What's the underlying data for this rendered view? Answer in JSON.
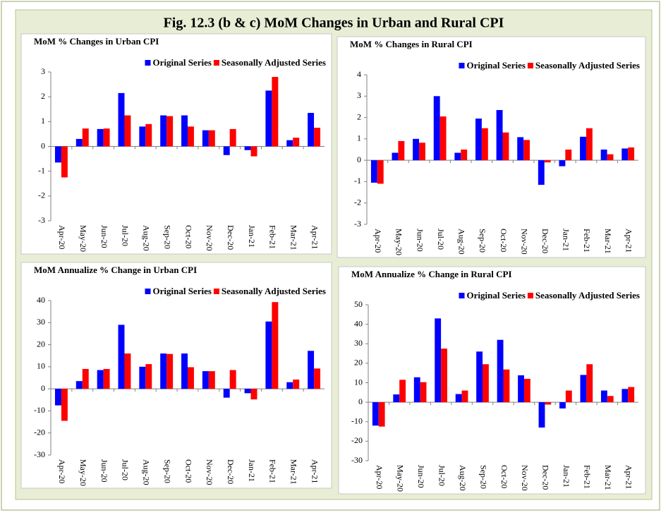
{
  "title": "Fig. 12.3 (b & c) MoM Changes in Urban and Rural CPI",
  "chart_data": [
    {
      "type": "bar",
      "title": "MoM % Changes in Urban CPI",
      "categories": [
        "Apr-20",
        "May-20",
        "Jun-20",
        "Jul-20",
        "Aug-20",
        "Sep-20",
        "Oct-20",
        "Nov-20",
        "Dec-20",
        "Jan-21",
        "Feb-21",
        "Mar-21",
        "Apr-21"
      ],
      "series": [
        {
          "name": "Original Series",
          "color": "#0000ff",
          "values": [
            -0.65,
            0.3,
            0.7,
            2.15,
            0.8,
            1.25,
            1.25,
            0.65,
            -0.35,
            -0.15,
            2.25,
            0.25,
            1.35
          ]
        },
        {
          "name": "Seasonally Adjusted Series",
          "color": "#ff0000",
          "values": [
            -1.25,
            0.72,
            0.72,
            1.25,
            0.9,
            1.22,
            0.8,
            0.65,
            0.7,
            -0.4,
            2.8,
            0.35,
            0.75
          ]
        }
      ],
      "ylim": [
        -3,
        3
      ],
      "yticks": [
        -3,
        -2,
        -1,
        0,
        1,
        2,
        3
      ]
    },
    {
      "type": "bar",
      "title": "MoM % Changes in Rural CPI",
      "categories": [
        "Apr-20",
        "May-20",
        "Jun-20",
        "Jul-20",
        "Aug-20",
        "Sep-20",
        "Oct-20",
        "Nov-20",
        "Dec-20",
        "Jan-21",
        "Feb-21",
        "Mar-21",
        "Apr-21"
      ],
      "series": [
        {
          "name": "Original Series",
          "color": "#0000ff",
          "values": [
            -1.05,
            0.35,
            1.0,
            3.0,
            0.35,
            1.95,
            2.35,
            1.08,
            -1.15,
            -0.28,
            1.1,
            0.5,
            0.55
          ]
        },
        {
          "name": "Seasonally Adjusted Series",
          "color": "#ff0000",
          "values": [
            -1.1,
            0.9,
            0.82,
            2.05,
            0.5,
            1.5,
            1.3,
            0.95,
            -0.1,
            0.5,
            1.5,
            0.28,
            0.6
          ]
        }
      ],
      "ylim": [
        -3,
        4
      ],
      "yticks": [
        -3,
        -2,
        -1,
        0,
        1,
        2,
        3,
        4
      ]
    },
    {
      "type": "bar",
      "title": "MoM Annualize % Change in Urban CPI",
      "categories": [
        "Apr-20",
        "May-20",
        "Jun-20",
        "Jul-20",
        "Aug-20",
        "Sep-20",
        "Oct-20",
        "Nov-20",
        "Dec-20",
        "Jan-21",
        "Feb-21",
        "Mar-21",
        "Apr-21"
      ],
      "series": [
        {
          "name": "Original Series",
          "color": "#0000ff",
          "values": [
            -7.5,
            3.5,
            8.5,
            29,
            10,
            16,
            16,
            8,
            -4,
            -2,
            30.5,
            3,
            17.2
          ]
        },
        {
          "name": "Seasonally Adjusted Series",
          "color": "#ff0000",
          "values": [
            -14.5,
            9,
            9,
            16,
            11.2,
            15.8,
            9.8,
            8,
            8.5,
            -4.8,
            39.3,
            4.2,
            9.2
          ]
        }
      ],
      "ylim": [
        -30,
        40
      ],
      "yticks": [
        -30,
        -20,
        -10,
        0,
        10,
        20,
        30,
        40
      ]
    },
    {
      "type": "bar",
      "title": "MoM Annualize % Change in Rural CPI",
      "categories": [
        "Apr-20",
        "May-20",
        "Jun-20",
        "Jul-20",
        "Aug-20",
        "Sep-20",
        "Oct-20",
        "Nov-20",
        "Dec-20",
        "Jan-21",
        "Feb-21",
        "Mar-21",
        "Apr-21"
      ],
      "series": [
        {
          "name": "Original Series",
          "color": "#0000ff",
          "values": [
            -12,
            4,
            12.8,
            43,
            4.2,
            26,
            32,
            13.8,
            -13,
            -3.2,
            14,
            6,
            6.8
          ]
        },
        {
          "name": "Seasonally Adjusted Series",
          "color": "#ff0000",
          "values": [
            -12.5,
            11.5,
            10.3,
            27.5,
            6,
            19.5,
            16.8,
            12,
            -1.2,
            6,
            19.5,
            3.2,
            7.8
          ]
        }
      ],
      "ylim": [
        -30,
        50
      ],
      "yticks": [
        -30,
        -20,
        -10,
        0,
        10,
        20,
        30,
        40,
        50
      ]
    }
  ]
}
